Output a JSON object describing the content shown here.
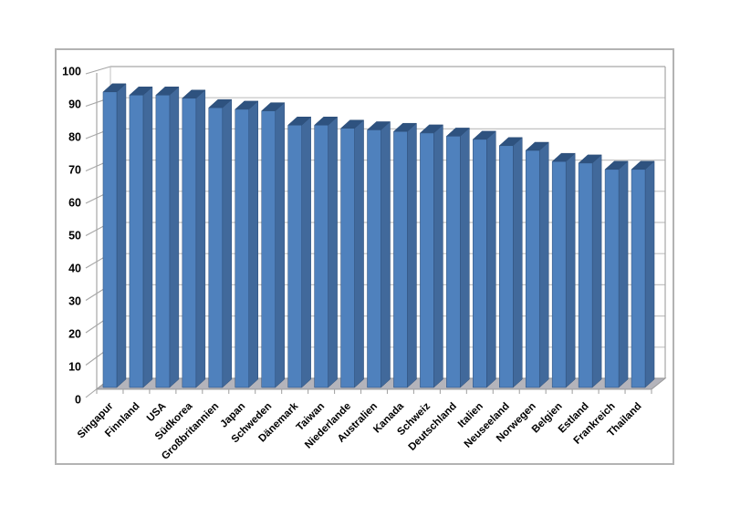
{
  "page": {
    "background_color": "#ffffff",
    "frame_border_color": "#b3b3b3"
  },
  "chart_data": {
    "type": "bar",
    "projection": "3d",
    "title": "",
    "xlabel": "",
    "ylabel": "",
    "categories": [
      "Singapur",
      "Finnland",
      "USA",
      "Südkorea",
      "Großbritannien",
      "Japan",
      "Schweden",
      "Dänemark",
      "Taiwan",
      "Niederlande",
      "Australien",
      "Kanada",
      "Schweiz",
      "Deutschland",
      "Italien",
      "Neuseeland",
      "Norwegen",
      "Belgien",
      "Estland",
      "Frankreich",
      "Thailand"
    ],
    "values": [
      94,
      93,
      93,
      92,
      89,
      88.5,
      88,
      83.5,
      83.5,
      82.5,
      82,
      81.5,
      81,
      80,
      79,
      77,
      75.5,
      72,
      71.5,
      69.5,
      69.5
    ],
    "ylim": [
      0,
      100
    ],
    "yticks": [
      0,
      10,
      20,
      30,
      40,
      50,
      60,
      70,
      80,
      90,
      100
    ],
    "ytick_labels": [
      "0",
      "10",
      "20",
      "30",
      "40",
      "50",
      "60",
      "70",
      "80",
      "90",
      "100"
    ],
    "grid": true,
    "legend": "none",
    "x_labels_rotation_deg": 45,
    "colors": {
      "bar_front": "#4f81bd",
      "bar_side": "#41699b",
      "bar_top": "#2e527f",
      "bar_edge": "#2d4e78",
      "gridline": "#c2c2c2",
      "wall_edge": "#a6a6a6",
      "floor_fill": "#b4b4bb",
      "floor_edge": "#999999",
      "axis_text": "#000000"
    }
  }
}
